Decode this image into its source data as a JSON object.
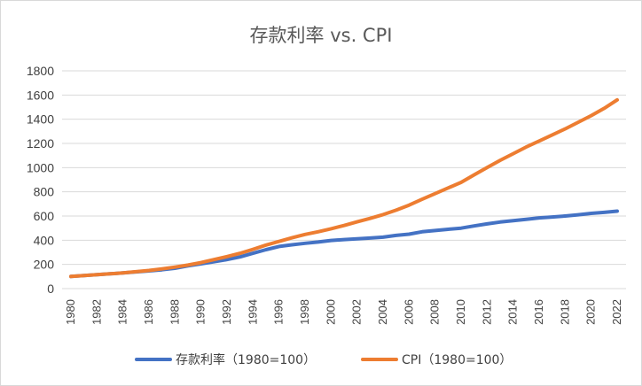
{
  "chart_data": {
    "type": "line",
    "title": "存款利率 vs. CPI",
    "xlabel": "",
    "ylabel": "",
    "ylim": [
      0,
      1800
    ],
    "yticks": [
      0,
      200,
      400,
      600,
      800,
      1000,
      1200,
      1400,
      1600,
      1800
    ],
    "x": [
      1980,
      1981,
      1982,
      1983,
      1984,
      1985,
      1986,
      1987,
      1988,
      1989,
      1990,
      1991,
      1992,
      1993,
      1994,
      1995,
      1996,
      1997,
      1998,
      1999,
      2000,
      2001,
      2002,
      2003,
      2004,
      2005,
      2006,
      2007,
      2008,
      2009,
      2010,
      2011,
      2012,
      2013,
      2014,
      2015,
      2016,
      2017,
      2018,
      2019,
      2020,
      2021,
      2022
    ],
    "xtick_labels": [
      "1980",
      "1982",
      "1984",
      "1986",
      "1988",
      "1990",
      "1992",
      "1994",
      "1996",
      "1998",
      "2000",
      "2002",
      "2004",
      "2006",
      "2008",
      "2010",
      "2012",
      "2014",
      "2016",
      "2018",
      "2020",
      "2022"
    ],
    "grid": true,
    "legend_position": "bottom",
    "series": [
      {
        "name": "存款利率（1980=100）",
        "color": "#4472C4",
        "values": [
          100,
          108,
          115,
          122,
          130,
          138,
          146,
          156,
          168,
          188,
          205,
          222,
          240,
          262,
          292,
          322,
          348,
          362,
          375,
          385,
          398,
          405,
          412,
          418,
          425,
          440,
          450,
          470,
          480,
          490,
          500,
          518,
          535,
          550,
          562,
          572,
          585,
          592,
          600,
          610,
          622,
          630,
          640
        ]
      },
      {
        "name": "CPI（1980=100）",
        "color": "#ED7D31",
        "values": [
          100,
          108,
          115,
          122,
          130,
          140,
          150,
          163,
          178,
          195,
          215,
          240,
          265,
          292,
          325,
          360,
          390,
          420,
          448,
          470,
          495,
          522,
          552,
          580,
          612,
          648,
          690,
          738,
          785,
          832,
          878,
          940,
          1000,
          1060,
          1115,
          1170,
          1220,
          1270,
          1320,
          1375,
          1430,
          1490,
          1560
        ]
      }
    ]
  }
}
